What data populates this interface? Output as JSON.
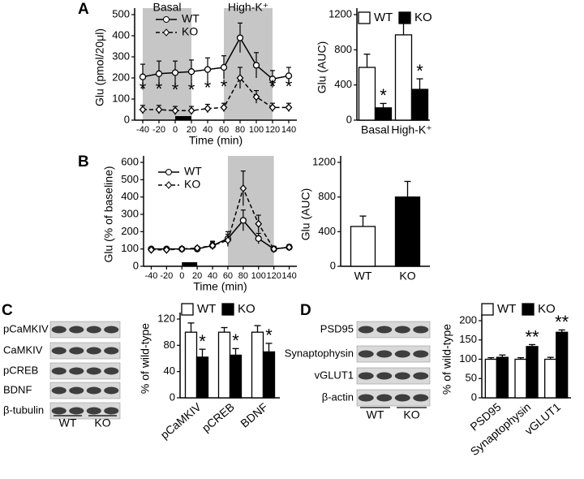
{
  "panel_labels": [
    "A",
    "B",
    "C",
    "D"
  ],
  "chart_data": [
    {
      "type": "line",
      "ylabel": "Glu (pmol/20μl)",
      "xlabel": "Time (min)",
      "x": [
        -40,
        -20,
        0,
        20,
        40,
        60,
        80,
        100,
        120,
        140
      ],
      "xlim": [
        -50,
        150
      ],
      "xticks": [
        -40,
        -20,
        0,
        20,
        40,
        60,
        80,
        100,
        120,
        140
      ],
      "ylim": [
        0,
        500
      ],
      "yticks": [
        0,
        100,
        200,
        300,
        400,
        500
      ],
      "shading": [
        {
          "label": "Basal",
          "range": [
            -40,
            20
          ]
        },
        {
          "label": "High-K⁺",
          "range": [
            60,
            120
          ]
        }
      ],
      "stimulus": [
        0,
        20
      ],
      "series": [
        {
          "name": "WT",
          "color": "#000000",
          "marker": "circle",
          "dash": false,
          "values": [
            205,
            220,
            225,
            230,
            240,
            250,
            390,
            260,
            195,
            210
          ],
          "errors": [
            60,
            60,
            55,
            55,
            55,
            55,
            70,
            60,
            40,
            40
          ]
        },
        {
          "name": "KO",
          "color": "#000000",
          "marker": "diamond",
          "dash": true,
          "values": [
            50,
            50,
            45,
            45,
            55,
            60,
            200,
            110,
            60,
            60
          ],
          "errors": [
            20,
            20,
            20,
            20,
            20,
            20,
            50,
            30,
            20,
            20
          ],
          "significance": [
            "*",
            "*",
            "*",
            "*",
            "*",
            "*",
            null,
            null,
            "*",
            "*"
          ]
        }
      ]
    },
    {
      "type": "bar",
      "ylabel": "Glu (AUC)",
      "categories": [
        "Basal",
        "High-K⁺"
      ],
      "ylim": [
        0,
        1200
      ],
      "yticks": [
        0,
        400,
        800,
        1200
      ],
      "series": [
        {
          "name": "WT",
          "color": "#ffffff",
          "values": [
            600,
            970
          ],
          "errors": [
            150,
            130
          ]
        },
        {
          "name": "KO",
          "color": "#000000",
          "values": [
            140,
            350
          ],
          "errors": [
            50,
            120
          ],
          "significance": [
            "*",
            "*"
          ]
        }
      ]
    },
    {
      "type": "line",
      "ylabel": "Glu (% of baseline)",
      "xlabel": "Time (min)",
      "x": [
        -40,
        -20,
        0,
        20,
        40,
        60,
        80,
        100,
        120,
        140
      ],
      "xlim": [
        -50,
        150
      ],
      "xticks": [
        -40,
        -20,
        0,
        20,
        40,
        60,
        80,
        100,
        120,
        140
      ],
      "ylim": [
        0,
        600
      ],
      "yticks": [
        0,
        100,
        200,
        300,
        400,
        500,
        600
      ],
      "shading": [
        {
          "range": [
            60,
            120
          ]
        }
      ],
      "stimulus": [
        0,
        20
      ],
      "series": [
        {
          "name": "WT",
          "color": "#000000",
          "marker": "circle",
          "dash": false,
          "values": [
            100,
            100,
            100,
            100,
            120,
            160,
            265,
            160,
            100,
            110
          ],
          "errors": [
            10,
            10,
            8,
            8,
            25,
            40,
            60,
            30,
            15,
            15
          ]
        },
        {
          "name": "KO",
          "color": "#000000",
          "marker": "diamond",
          "dash": true,
          "values": [
            95,
            95,
            100,
            105,
            120,
            150,
            450,
            245,
            100,
            110
          ],
          "errors": [
            10,
            10,
            8,
            10,
            20,
            35,
            100,
            50,
            15,
            15
          ]
        }
      ]
    },
    {
      "type": "bar",
      "ylabel": "Glu (AUC)",
      "categories": [
        "WT",
        "KO"
      ],
      "ylim": [
        0,
        1200
      ],
      "yticks": [
        0,
        400,
        800,
        1200
      ],
      "values": [
        460,
        800
      ],
      "errors": [
        120,
        180
      ],
      "colors": [
        "#ffffff",
        "#000000"
      ]
    },
    {
      "type": "bar",
      "ylabel": "% of wild-type",
      "categories": [
        "pCaMKIV",
        "pCREB",
        "BDNF"
      ],
      "ylim": [
        0,
        120
      ],
      "yticks": [
        0,
        40,
        80,
        120
      ],
      "series": [
        {
          "name": "WT",
          "color": "#ffffff",
          "values": [
            100,
            100,
            100
          ],
          "errors": [
            14,
            7,
            10
          ]
        },
        {
          "name": "KO",
          "color": "#000000",
          "values": [
            62,
            65,
            70
          ],
          "errors": [
            12,
            10,
            13
          ],
          "significance": [
            "*",
            "*",
            "*"
          ]
        }
      ]
    },
    {
      "type": "bar",
      "ylabel": "% of wild-type",
      "categories": [
        "PSD95",
        "Synaptophysin",
        "vGLUT1"
      ],
      "ylim": [
        0,
        200
      ],
      "yticks": [
        0,
        50,
        100,
        150,
        200
      ],
      "series": [
        {
          "name": "WT",
          "color": "#ffffff",
          "values": [
            100,
            100,
            100
          ],
          "errors": [
            4,
            4,
            5
          ]
        },
        {
          "name": "KO",
          "color": "#000000",
          "values": [
            105,
            133,
            170
          ],
          "errors": [
            6,
            5,
            6
          ],
          "significance": [
            null,
            "**",
            "**"
          ]
        }
      ]
    }
  ],
  "blots": [
    {
      "rows": [
        "pCaMKIV",
        "CaMKIV",
        "pCREB",
        "BDNF",
        "β-tubulin"
      ],
      "groups": [
        "WT",
        "KO"
      ]
    },
    {
      "rows": [
        "PSD95",
        "Synaptophysin",
        "vGLUT1",
        "β-actin"
      ],
      "groups": [
        "WT",
        "KO"
      ]
    }
  ]
}
